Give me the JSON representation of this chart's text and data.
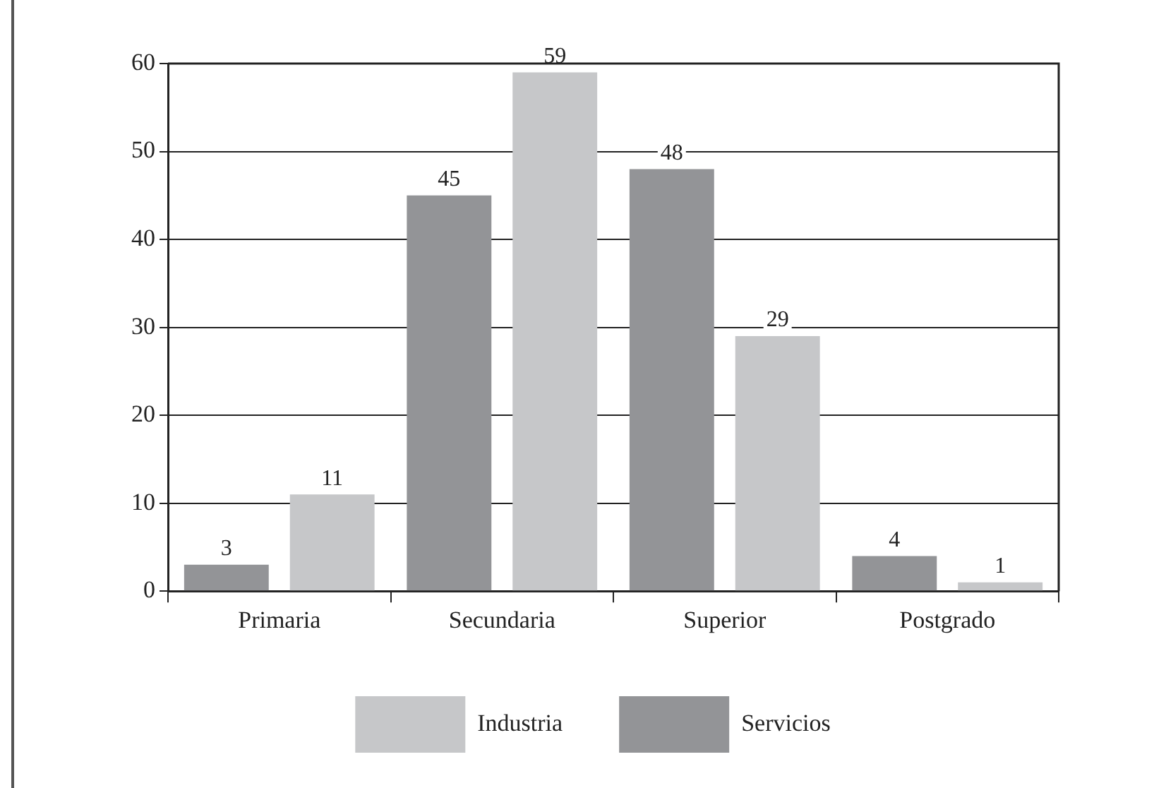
{
  "chart_data": {
    "type": "bar",
    "categories": [
      "Primaria",
      "Secundaria",
      "Superior",
      "Postgrado"
    ],
    "series": [
      {
        "name": "Servicios",
        "color": "#939497",
        "values": [
          3,
          45,
          48,
          4
        ]
      },
      {
        "name": "Industria",
        "color": "#c6c7c9",
        "values": [
          11,
          59,
          29,
          1
        ]
      }
    ],
    "ylim": [
      0,
      60
    ],
    "yticks": [
      0,
      10,
      20,
      30,
      40,
      50,
      60
    ],
    "grid": "y",
    "legend": "bottom",
    "data_labels": true
  }
}
